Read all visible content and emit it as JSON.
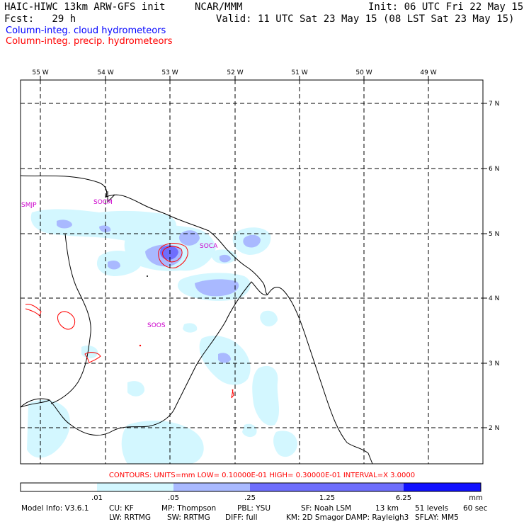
{
  "header": {
    "title": "HAIC-HIWC 13km ARW-GFS init",
    "org": "NCAR/MMM",
    "init": "Init: 06 UTC Fri 22 May 15",
    "fcst": "Fcst:   29 h",
    "valid": "Valid: 11 UTC Sat 23 May 15 (08 LST Sat 23 May 15)"
  },
  "legend": {
    "cloud_label": "Column-integ. cloud hydrometeors",
    "cloud_color": "#0000ff",
    "precip_label": "Column-integ. precip. hydrometeors",
    "precip_color": "#ff0000"
  },
  "map": {
    "lon_labels": [
      "55 W",
      "54 W",
      "53 W",
      "52 W",
      "51 W",
      "50 W",
      "49 W"
    ],
    "lat_labels": [
      "7 N",
      "6 N",
      "5 N",
      "4 N",
      "3 N",
      "2 N"
    ],
    "stations": [
      "SMJP",
      "SOCM",
      "SOCA",
      "SOOS"
    ]
  },
  "contours_text": "CONTOURS:  UNITS=mm   LOW= 0.10000E-01   HIGH= 0.30000E-01   INTERVAL=X   3.0000",
  "colorbar": {
    "tick_labels": [
      ".01",
      ".05",
      ".25",
      "1.25",
      "6.25",
      "mm"
    ],
    "colors": [
      "#ffffff",
      "#d3f7ff",
      "#a9b9ff",
      "#6e6efd",
      "#1111ff"
    ]
  },
  "model_info": {
    "line1": [
      "Model Info: V3.6.1",
      "CU: KF",
      "MP: Thompson",
      "PBL: YSU",
      "SF: Noah LSM",
      "13 km",
      "51 levels",
      "60 sec"
    ],
    "line2": [
      "LW: RRTMG",
      "SW: RRTMG",
      "DIFF: full",
      "KM: 2D Smagor",
      "DAMP: Rayleigh3",
      "SFLAY: MM5"
    ]
  }
}
